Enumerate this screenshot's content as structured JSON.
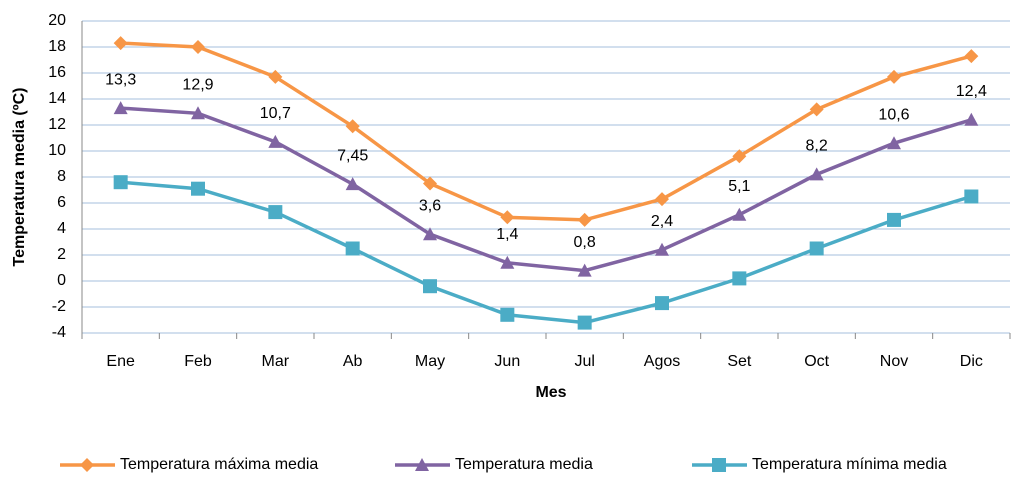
{
  "chart_data": {
    "type": "line",
    "categories": [
      "Ene",
      "Feb",
      "Mar",
      "Ab",
      "May",
      "Jun",
      "Jul",
      "Agos",
      "Set",
      "Oct",
      "Nov",
      "Dic"
    ],
    "series": [
      {
        "name": "Temperatura máxima media",
        "color": "#f79646",
        "marker": "diamond",
        "values": [
          18.3,
          18.0,
          15.7,
          11.9,
          7.5,
          4.9,
          4.7,
          6.3,
          9.6,
          13.2,
          15.7,
          17.3
        ]
      },
      {
        "name": "Temperatura media",
        "color": "#8064a2",
        "marker": "triangle",
        "values": [
          13.3,
          12.9,
          10.7,
          7.45,
          3.6,
          1.4,
          0.8,
          2.4,
          5.1,
          8.2,
          10.6,
          12.4
        ],
        "value_labels": [
          "13,3",
          "12,9",
          "10,7",
          "7,45",
          "3,6",
          "1,4",
          "0,8",
          "2,4",
          "5,1",
          "8,2",
          "10,6",
          "12,4"
        ]
      },
      {
        "name": "Temperatura mínima media",
        "color": "#4bacc6",
        "marker": "square",
        "values": [
          7.6,
          7.1,
          5.3,
          2.5,
          -0.4,
          -2.6,
          -3.2,
          -1.7,
          0.2,
          2.5,
          4.7,
          6.5
        ]
      }
    ],
    "x_label": "Mes",
    "y_label": "Temperatura media (ºC)",
    "ylim": [
      -4,
      20
    ],
    "yticks": [
      -4,
      -2,
      0,
      2,
      4,
      6,
      8,
      10,
      12,
      14,
      16,
      18,
      20
    ],
    "grid": true,
    "legend": "bottom"
  }
}
